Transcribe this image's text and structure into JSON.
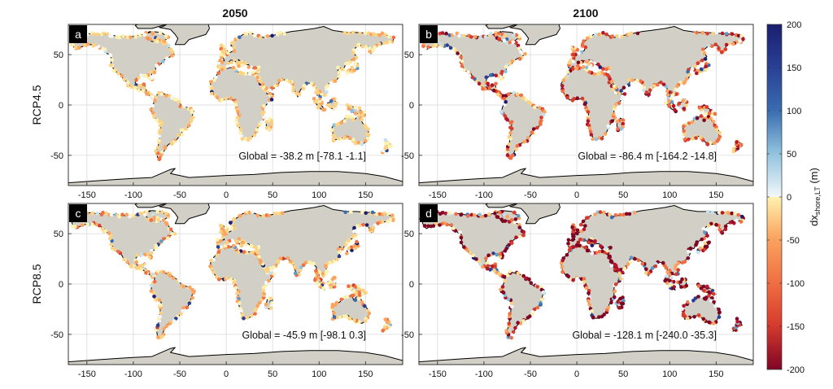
{
  "columns": [
    "2050",
    "2100"
  ],
  "rows": [
    "RCP4.5",
    "RCP8.5"
  ],
  "panels": [
    {
      "letter": "a",
      "scenario": "RCP4.5",
      "year": "2050",
      "global": "Global = -38.2 m [-78.1 -1.1]",
      "mean": -38.2
    },
    {
      "letter": "b",
      "scenario": "RCP4.5",
      "year": "2100",
      "global": "Global = -86.4 m [-164.2 -14.8]",
      "mean": -86.4
    },
    {
      "letter": "c",
      "scenario": "RCP8.5",
      "year": "2050",
      "global": "Global = -45.9 m [-98.1 0.3]",
      "mean": -45.9
    },
    {
      "letter": "d",
      "scenario": "RCP8.5",
      "year": "2100",
      "global": "Global = -128.1 m [-240.0 -35.3]",
      "mean": -128.1
    }
  ],
  "axes": {
    "x_ticks": [
      "-150",
      "-100",
      "-50",
      "0",
      "50",
      "100",
      "150"
    ],
    "x_values": [
      -150,
      -100,
      -50,
      0,
      50,
      100,
      150
    ],
    "y_ticks": [
      "50",
      "0",
      "-50"
    ],
    "y_values": [
      50,
      0,
      -50
    ],
    "xlim": [
      -170,
      190
    ],
    "ylim": [
      -80,
      80
    ]
  },
  "colorbar": {
    "label_main": "dx",
    "label_sub": "shore,LT",
    "label_unit": " (m)",
    "ticks": [
      "200",
      "150",
      "100",
      "50",
      "0",
      "-50",
      "-100",
      "-150",
      "-200"
    ],
    "values": [
      200,
      150,
      100,
      50,
      0,
      -50,
      -100,
      -150,
      -200
    ],
    "positive_colors": [
      "#f2f7fa",
      "#c6e0ec",
      "#8ec0dd",
      "#5a9bc9",
      "#3a6cb0",
      "#283f94",
      "#1b1e6f"
    ],
    "negative_colors": [
      "#fff1b0",
      "#fdd282",
      "#fba35f",
      "#f06e42",
      "#d63c2d",
      "#b3162a",
      "#7f0525"
    ]
  },
  "colors": {
    "land": "#d2d0c6",
    "coast": "#000000",
    "grid": "#d9d9d9"
  }
}
